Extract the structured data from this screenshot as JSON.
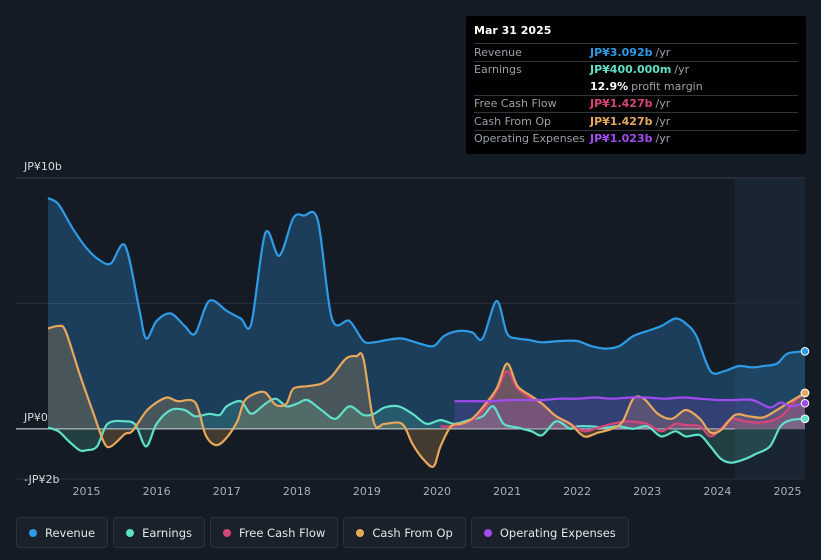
{
  "tooltip": {
    "date": "Mar 31 2025",
    "rows": [
      {
        "label": "Revenue",
        "value": "JP¥3.092b",
        "suffix": "/yr",
        "color": "#2d9be6"
      },
      {
        "label": "Earnings",
        "value": "JP¥400.000m",
        "suffix": "/yr",
        "color": "#5fe0c8"
      },
      {
        "label": "",
        "value": "12.9%",
        "suffix": "profit margin",
        "color": "#ffffff"
      },
      {
        "label": "Free Cash Flow",
        "value": "JP¥1.427b",
        "suffix": "/yr",
        "color": "#d6457a"
      },
      {
        "label": "Cash From Op",
        "value": "JP¥1.427b",
        "suffix": "/yr",
        "color": "#e8a85c"
      },
      {
        "label": "Operating Expenses",
        "value": "JP¥1.023b",
        "suffix": "/yr",
        "color": "#a04cf0"
      }
    ]
  },
  "legend": [
    {
      "label": "Revenue",
      "color": "#2d9be6"
    },
    {
      "label": "Earnings",
      "color": "#5fe0c8"
    },
    {
      "label": "Free Cash Flow",
      "color": "#d6457a"
    },
    {
      "label": "Cash From Op",
      "color": "#e8a85c"
    },
    {
      "label": "Operating Expenses",
      "color": "#a04cf0"
    }
  ],
  "chart_data": {
    "type": "area",
    "y_unit": "JP¥ billions",
    "ylim": [
      -2,
      10
    ],
    "y_tick_labels": [
      {
        "value": 10,
        "label": "JP¥10b"
      },
      {
        "value": 0,
        "label": "JP¥0"
      },
      {
        "value": -2,
        "label": "-JP¥2b"
      }
    ],
    "x_tick_labels": [
      {
        "value": 2015,
        "label": "2015"
      },
      {
        "value": 2016,
        "label": "2016"
      },
      {
        "value": 2017,
        "label": "2017"
      },
      {
        "value": 2018,
        "label": "2018"
      },
      {
        "value": 2019,
        "label": "2019"
      },
      {
        "value": 2020,
        "label": "2020"
      },
      {
        "value": 2021,
        "label": "2021"
      },
      {
        "value": 2022,
        "label": "2022"
      },
      {
        "value": 2023,
        "label": "2023"
      },
      {
        "value": 2024,
        "label": "2024"
      },
      {
        "value": 2025,
        "label": "2025"
      }
    ],
    "xlim": [
      2014.45,
      2025.25
    ],
    "highlight_from": 2024.25,
    "series": [
      {
        "name": "Revenue",
        "color": "#2d9be6",
        "points": [
          [
            2014.45,
            9.2
          ],
          [
            2014.6,
            8.95
          ],
          [
            2014.8,
            8.0
          ],
          [
            2015.0,
            7.2
          ],
          [
            2015.2,
            6.7
          ],
          [
            2015.35,
            6.6
          ],
          [
            2015.55,
            7.3
          ],
          [
            2015.75,
            4.8
          ],
          [
            2015.85,
            3.6
          ],
          [
            2016.0,
            4.3
          ],
          [
            2016.2,
            4.6
          ],
          [
            2016.4,
            4.1
          ],
          [
            2016.55,
            3.8
          ],
          [
            2016.75,
            5.1
          ],
          [
            2017.0,
            4.7
          ],
          [
            2017.2,
            4.4
          ],
          [
            2017.35,
            4.2
          ],
          [
            2017.55,
            7.8
          ],
          [
            2017.75,
            6.9
          ],
          [
            2017.95,
            8.4
          ],
          [
            2018.1,
            8.5
          ],
          [
            2018.3,
            8.3
          ],
          [
            2018.5,
            4.4
          ],
          [
            2018.75,
            4.3
          ],
          [
            2018.95,
            3.5
          ],
          [
            2019.1,
            3.45
          ],
          [
            2019.3,
            3.55
          ],
          [
            2019.5,
            3.6
          ],
          [
            2019.75,
            3.4
          ],
          [
            2019.95,
            3.3
          ],
          [
            2020.1,
            3.7
          ],
          [
            2020.3,
            3.9
          ],
          [
            2020.5,
            3.85
          ],
          [
            2020.65,
            3.6
          ],
          [
            2020.85,
            5.1
          ],
          [
            2021.0,
            3.8
          ],
          [
            2021.15,
            3.6
          ],
          [
            2021.3,
            3.55
          ],
          [
            2021.5,
            3.45
          ],
          [
            2021.75,
            3.5
          ],
          [
            2022.0,
            3.5
          ],
          [
            2022.2,
            3.3
          ],
          [
            2022.4,
            3.2
          ],
          [
            2022.6,
            3.3
          ],
          [
            2022.8,
            3.7
          ],
          [
            2023.0,
            3.9
          ],
          [
            2023.2,
            4.1
          ],
          [
            2023.4,
            4.4
          ],
          [
            2023.55,
            4.2
          ],
          [
            2023.7,
            3.7
          ],
          [
            2023.9,
            2.3
          ],
          [
            2024.1,
            2.3
          ],
          [
            2024.3,
            2.5
          ],
          [
            2024.5,
            2.45
          ],
          [
            2024.65,
            2.5
          ],
          [
            2024.85,
            2.6
          ],
          [
            2025.0,
            3.0
          ],
          [
            2025.25,
            3.09
          ]
        ]
      },
      {
        "name": "Earnings",
        "color": "#5fe0c8",
        "points": [
          [
            2014.45,
            0.05
          ],
          [
            2014.6,
            -0.1
          ],
          [
            2014.75,
            -0.5
          ],
          [
            2014.9,
            -0.85
          ],
          [
            2015.0,
            -0.85
          ],
          [
            2015.15,
            -0.7
          ],
          [
            2015.3,
            0.2
          ],
          [
            2015.55,
            0.3
          ],
          [
            2015.7,
            0.15
          ],
          [
            2015.85,
            -0.7
          ],
          [
            2016.0,
            0.2
          ],
          [
            2016.2,
            0.75
          ],
          [
            2016.4,
            0.75
          ],
          [
            2016.55,
            0.5
          ],
          [
            2016.75,
            0.6
          ],
          [
            2016.9,
            0.55
          ],
          [
            2017.0,
            0.9
          ],
          [
            2017.2,
            1.1
          ],
          [
            2017.35,
            0.6
          ],
          [
            2017.55,
            1.0
          ],
          [
            2017.7,
            1.2
          ],
          [
            2017.85,
            0.9
          ],
          [
            2018.0,
            1.0
          ],
          [
            2018.15,
            1.15
          ],
          [
            2018.35,
            0.75
          ],
          [
            2018.55,
            0.4
          ],
          [
            2018.75,
            0.9
          ],
          [
            2018.95,
            0.55
          ],
          [
            2019.1,
            0.6
          ],
          [
            2019.25,
            0.85
          ],
          [
            2019.45,
            0.9
          ],
          [
            2019.65,
            0.6
          ],
          [
            2019.85,
            0.2
          ],
          [
            2020.05,
            0.35
          ],
          [
            2020.25,
            0.2
          ],
          [
            2020.45,
            0.35
          ],
          [
            2020.65,
            0.5
          ],
          [
            2020.8,
            0.9
          ],
          [
            2020.95,
            0.2
          ],
          [
            2021.15,
            0.05
          ],
          [
            2021.35,
            -0.1
          ],
          [
            2021.5,
            -0.25
          ],
          [
            2021.7,
            0.3
          ],
          [
            2021.9,
            0.0
          ],
          [
            2022.0,
            0.1
          ],
          [
            2022.2,
            0.1
          ],
          [
            2022.4,
            0.05
          ],
          [
            2022.6,
            0.1
          ],
          [
            2022.8,
            0.0
          ],
          [
            2023.0,
            0.1
          ],
          [
            2023.2,
            -0.3
          ],
          [
            2023.4,
            -0.1
          ],
          [
            2023.55,
            -0.3
          ],
          [
            2023.75,
            -0.25
          ],
          [
            2023.9,
            -0.7
          ],
          [
            2024.05,
            -1.2
          ],
          [
            2024.2,
            -1.35
          ],
          [
            2024.4,
            -1.2
          ],
          [
            2024.55,
            -1.0
          ],
          [
            2024.75,
            -0.7
          ],
          [
            2024.9,
            0.1
          ],
          [
            2025.05,
            0.35
          ],
          [
            2025.25,
            0.4
          ]
        ]
      },
      {
        "name": "Free Cash Flow",
        "color": "#d6457a",
        "points": [
          [
            2020.05,
            0.1
          ],
          [
            2020.2,
            0.1
          ],
          [
            2020.35,
            0.2
          ],
          [
            2020.5,
            0.35
          ],
          [
            2020.65,
            0.7
          ],
          [
            2020.85,
            1.5
          ],
          [
            2021.0,
            2.3
          ],
          [
            2021.15,
            1.6
          ],
          [
            2021.35,
            1.2
          ],
          [
            2021.5,
            1.0
          ],
          [
            2021.7,
            0.5
          ],
          [
            2021.9,
            0.2
          ],
          [
            2022.1,
            -0.1
          ],
          [
            2022.3,
            0.05
          ],
          [
            2022.5,
            0.2
          ],
          [
            2022.7,
            0.3
          ],
          [
            2022.9,
            0.25
          ],
          [
            2023.0,
            0.2
          ],
          [
            2023.2,
            -0.1
          ],
          [
            2023.4,
            0.2
          ],
          [
            2023.55,
            0.15
          ],
          [
            2023.75,
            0.1
          ],
          [
            2023.9,
            -0.3
          ],
          [
            2024.05,
            0.0
          ],
          [
            2024.2,
            0.4
          ],
          [
            2024.4,
            0.3
          ],
          [
            2024.6,
            0.25
          ],
          [
            2024.8,
            0.35
          ],
          [
            2024.95,
            0.6
          ],
          [
            2025.1,
            1.1
          ],
          [
            2025.25,
            1.43
          ]
        ]
      },
      {
        "name": "Cash From Op",
        "color": "#e8a85c",
        "points": [
          [
            2014.45,
            4.0
          ],
          [
            2014.6,
            4.1
          ],
          [
            2014.7,
            3.9
          ],
          [
            2014.9,
            2.2
          ],
          [
            2015.1,
            0.6
          ],
          [
            2015.25,
            -0.55
          ],
          [
            2015.35,
            -0.7
          ],
          [
            2015.55,
            -0.2
          ],
          [
            2015.65,
            -0.1
          ],
          [
            2015.85,
            0.7
          ],
          [
            2016.0,
            1.05
          ],
          [
            2016.15,
            1.25
          ],
          [
            2016.3,
            1.1
          ],
          [
            2016.55,
            1.05
          ],
          [
            2016.7,
            -0.25
          ],
          [
            2016.85,
            -0.65
          ],
          [
            2017.0,
            -0.35
          ],
          [
            2017.15,
            0.3
          ],
          [
            2017.25,
            1.1
          ],
          [
            2017.4,
            1.4
          ],
          [
            2017.55,
            1.45
          ],
          [
            2017.7,
            0.95
          ],
          [
            2017.85,
            1.0
          ],
          [
            2017.95,
            1.6
          ],
          [
            2018.15,
            1.7
          ],
          [
            2018.35,
            1.8
          ],
          [
            2018.5,
            2.1
          ],
          [
            2018.7,
            2.8
          ],
          [
            2018.85,
            2.9
          ],
          [
            2018.95,
            2.8
          ],
          [
            2019.1,
            0.25
          ],
          [
            2019.25,
            0.2
          ],
          [
            2019.5,
            0.2
          ],
          [
            2019.65,
            -0.6
          ],
          [
            2019.8,
            -1.2
          ],
          [
            2019.95,
            -1.5
          ],
          [
            2020.05,
            -0.7
          ],
          [
            2020.2,
            0.1
          ],
          [
            2020.35,
            0.2
          ],
          [
            2020.5,
            0.4
          ],
          [
            2020.65,
            0.85
          ],
          [
            2020.85,
            1.6
          ],
          [
            2021.0,
            2.6
          ],
          [
            2021.15,
            1.7
          ],
          [
            2021.35,
            1.3
          ],
          [
            2021.5,
            1.0
          ],
          [
            2021.7,
            0.5
          ],
          [
            2021.9,
            0.2
          ],
          [
            2022.1,
            -0.3
          ],
          [
            2022.3,
            -0.15
          ],
          [
            2022.5,
            0.0
          ],
          [
            2022.65,
            0.3
          ],
          [
            2022.8,
            1.2
          ],
          [
            2022.95,
            1.2
          ],
          [
            2023.15,
            0.6
          ],
          [
            2023.35,
            0.4
          ],
          [
            2023.55,
            0.75
          ],
          [
            2023.75,
            0.4
          ],
          [
            2023.9,
            -0.15
          ],
          [
            2024.05,
            -0.05
          ],
          [
            2024.25,
            0.55
          ],
          [
            2024.45,
            0.5
          ],
          [
            2024.65,
            0.45
          ],
          [
            2024.85,
            0.75
          ],
          [
            2025.05,
            1.1
          ],
          [
            2025.25,
            1.43
          ]
        ]
      },
      {
        "name": "Operating Expenses",
        "color": "#a04cf0",
        "points": [
          [
            2020.25,
            1.1
          ],
          [
            2020.5,
            1.1
          ],
          [
            2020.75,
            1.1
          ],
          [
            2021.0,
            1.15
          ],
          [
            2021.25,
            1.15
          ],
          [
            2021.5,
            1.15
          ],
          [
            2021.75,
            1.2
          ],
          [
            2022.0,
            1.2
          ],
          [
            2022.25,
            1.25
          ],
          [
            2022.5,
            1.2
          ],
          [
            2022.75,
            1.25
          ],
          [
            2023.0,
            1.25
          ],
          [
            2023.25,
            1.2
          ],
          [
            2023.5,
            1.25
          ],
          [
            2023.75,
            1.2
          ],
          [
            2024.0,
            1.15
          ],
          [
            2024.25,
            1.15
          ],
          [
            2024.5,
            1.15
          ],
          [
            2024.75,
            0.85
          ],
          [
            2024.9,
            1.05
          ],
          [
            2025.05,
            0.9
          ],
          [
            2025.25,
            1.02
          ]
        ]
      }
    ]
  }
}
